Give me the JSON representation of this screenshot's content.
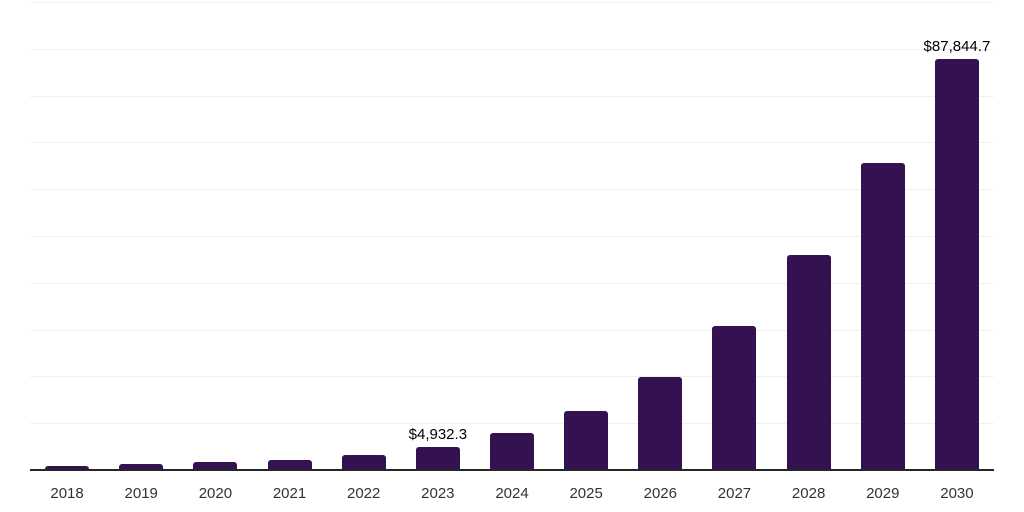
{
  "chart_data": {
    "type": "bar",
    "title": "",
    "categories": [
      "2018",
      "2019",
      "2020",
      "2021",
      "2022",
      "2023",
      "2024",
      "2025",
      "2026",
      "2027",
      "2028",
      "2029",
      "2030"
    ],
    "values": [
      950,
      1250,
      1700,
      2150,
      3200,
      4932.3,
      8000,
      12700,
      19800,
      30700,
      46000,
      65600,
      87844.7
    ],
    "value_labels": {
      "2023": "$4,932.3",
      "2030": "$87,844.7"
    },
    "ylim": [
      0,
      100000
    ],
    "gridline_step": 10000,
    "grid": "horizontal-only",
    "legend": "none",
    "y_axis_tick_labels_visible": false,
    "colors": {
      "bar": "#341150",
      "gridline": "#F0F0F0",
      "axis_line": "#262626",
      "tick_label": "#333333",
      "value_label": "#000000",
      "background": "#FFFFFF"
    }
  }
}
